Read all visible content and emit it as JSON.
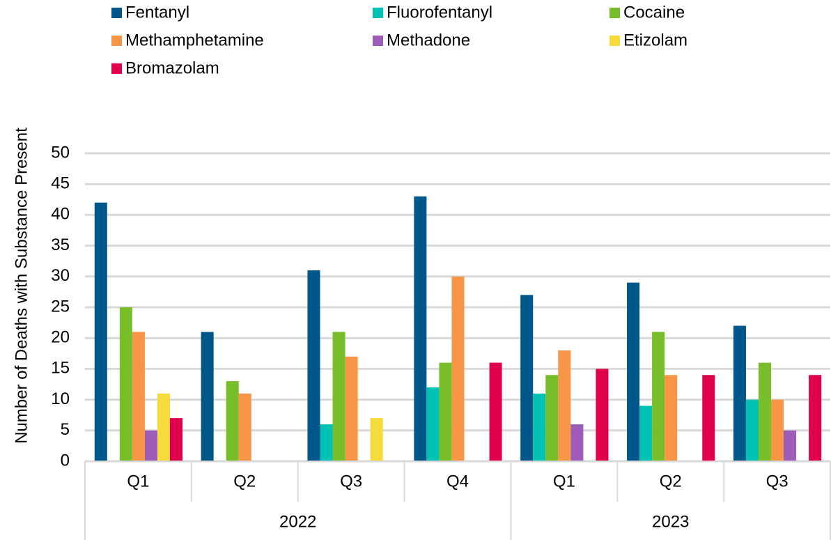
{
  "chart_data": {
    "type": "bar",
    "y_label": "Number of Deaths with Substance Present",
    "categories": [
      "Q1",
      "Q2",
      "Q3",
      "Q4",
      "Q1",
      "Q2",
      "Q3"
    ],
    "years": [
      "2022",
      "2022",
      "2022",
      "2022",
      "2023",
      "2023",
      "2023"
    ],
    "series": [
      {
        "name": "Fentanyl",
        "color": "#00578a",
        "values": [
          42,
          21,
          31,
          43,
          27,
          29,
          22
        ]
      },
      {
        "name": "Fluorofentanyl",
        "color": "#00c2b4",
        "values": [
          null,
          null,
          6,
          12,
          11,
          9,
          10
        ]
      },
      {
        "name": "Cocaine",
        "color": "#78bd2a",
        "values": [
          25,
          13,
          21,
          16,
          14,
          21,
          16
        ]
      },
      {
        "name": "Methamphetamine",
        "color": "#f79646",
        "values": [
          21,
          11,
          17,
          30,
          18,
          14,
          10
        ]
      },
      {
        "name": "Methadone",
        "color": "#9c5cb8",
        "values": [
          5,
          null,
          null,
          null,
          6,
          null,
          5
        ]
      },
      {
        "name": "Etizolam",
        "color": "#f5dc3c",
        "values": [
          11,
          null,
          7,
          null,
          null,
          null,
          null
        ]
      },
      {
        "name": "Bromazolam",
        "color": "#e0004d",
        "values": [
          7,
          null,
          null,
          16,
          15,
          14,
          14
        ]
      }
    ],
    "ylim": [
      0,
      50
    ],
    "yticks": [
      0,
      5,
      10,
      15,
      20,
      25,
      30,
      35,
      40,
      45,
      50
    ],
    "grid": true,
    "legend": "top"
  }
}
